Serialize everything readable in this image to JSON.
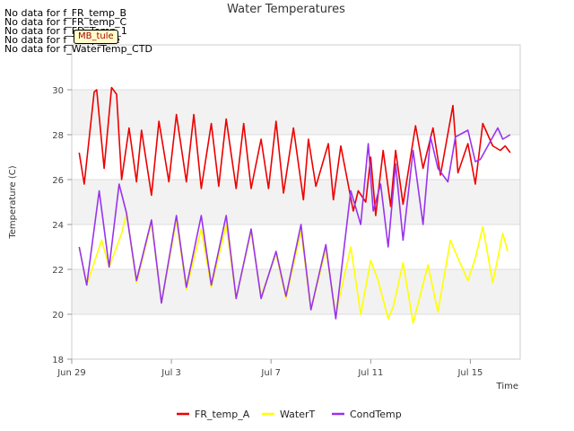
{
  "notes": [
    "No data for f_FR_temp_B",
    "No data for f_FR_temp_C",
    "No data for f_FD_Temp_1",
    "No data for f_Temp_Pile",
    "No data for f_WaterTemp_CTD"
  ],
  "badge": "MB_tule",
  "chart_data": {
    "type": "line",
    "title": "Water Temperatures",
    "xlabel": "Time",
    "ylabel": "Temperature (C)",
    "xlim": [
      0,
      18
    ],
    "ylim": [
      18,
      32
    ],
    "x_ticks": [
      {
        "value": 0,
        "label": "Jun 29"
      },
      {
        "value": 4,
        "label": "Jul 3"
      },
      {
        "value": 8,
        "label": "Jul 7"
      },
      {
        "value": 12,
        "label": "Jul 11"
      },
      {
        "value": 16,
        "label": "Jul 15"
      }
    ],
    "y_ticks": [
      18,
      20,
      22,
      24,
      26,
      28,
      30
    ],
    "grid": "horizontal bands",
    "legend_position": "bottom",
    "series": [
      {
        "name": "FR_temp_A",
        "color": "#ee0000",
        "x": [
          0.3,
          0.5,
          0.9,
          1.0,
          1.3,
          1.6,
          1.8,
          2.0,
          2.3,
          2.6,
          2.8,
          3.2,
          3.5,
          3.9,
          4.2,
          4.6,
          4.9,
          5.2,
          5.6,
          5.9,
          6.2,
          6.6,
          6.9,
          7.2,
          7.6,
          7.9,
          8.2,
          8.5,
          8.9,
          9.3,
          9.5,
          9.8,
          10.3,
          10.5,
          10.8,
          11.3,
          11.5,
          11.8,
          12.0,
          12.2,
          12.5,
          12.8,
          13.0,
          13.3,
          13.8,
          14.1,
          14.5,
          14.8,
          15.3,
          15.5,
          15.9,
          16.2,
          16.5,
          16.9,
          17.2,
          17.4,
          17.6
        ],
        "y": [
          27.2,
          25.8,
          29.9,
          30.0,
          26.5,
          30.1,
          29.8,
          26.0,
          28.3,
          25.9,
          28.2,
          25.3,
          28.6,
          25.9,
          28.9,
          25.9,
          28.9,
          25.6,
          28.5,
          25.7,
          28.7,
          25.6,
          28.5,
          25.6,
          27.8,
          25.6,
          28.6,
          25.4,
          28.3,
          25.1,
          27.8,
          25.7,
          27.6,
          25.1,
          27.5,
          24.6,
          25.5,
          25.0,
          27.0,
          24.4,
          27.3,
          24.8,
          27.3,
          24.9,
          28.4,
          26.5,
          28.3,
          26.2,
          29.3,
          26.3,
          27.6,
          25.8,
          28.5,
          27.5,
          27.3,
          27.5,
          27.2
        ]
      },
      {
        "name": "WaterT",
        "color": "#ffff00",
        "x": [
          0.3,
          0.6,
          1.2,
          1.5,
          2.0,
          2.2,
          2.6,
          3.2,
          3.6,
          4.2,
          4.6,
          5.2,
          5.6,
          6.2,
          6.6,
          7.2,
          7.6,
          8.2,
          8.6,
          9.2,
          9.6,
          10.2,
          10.6,
          11.2,
          11.6,
          12.0,
          12.3,
          12.7,
          12.9,
          13.3,
          13.7,
          14.3,
          14.7,
          15.2,
          15.5,
          15.9,
          16.2,
          16.5,
          16.9,
          17.3,
          17.5
        ],
        "y": [
          23.0,
          21.3,
          23.3,
          22.1,
          23.6,
          24.5,
          21.4,
          24.1,
          20.5,
          24.2,
          21.1,
          23.8,
          21.2,
          24.0,
          20.7,
          23.7,
          20.8,
          22.7,
          20.7,
          23.7,
          20.2,
          22.9,
          20.0,
          23.0,
          20.0,
          22.4,
          21.5,
          19.8,
          20.3,
          22.3,
          19.6,
          22.2,
          20.1,
          23.3,
          22.5,
          21.5,
          22.5,
          23.9,
          21.4,
          23.6,
          22.8
        ]
      },
      {
        "name": "CondTemp",
        "color": "#9933ee",
        "x": [
          0.3,
          0.6,
          1.1,
          1.5,
          1.9,
          2.2,
          2.6,
          3.2,
          3.6,
          4.2,
          4.6,
          5.2,
          5.6,
          6.2,
          6.6,
          7.2,
          7.6,
          8.2,
          8.6,
          9.2,
          9.6,
          10.2,
          10.6,
          11.2,
          11.6,
          11.9,
          12.1,
          12.4,
          12.7,
          13.0,
          13.3,
          13.7,
          14.1,
          14.4,
          14.7,
          15.1,
          15.4,
          15.9,
          16.2,
          16.4,
          16.8,
          17.1,
          17.3,
          17.6
        ],
        "y": [
          23.0,
          21.3,
          25.5,
          22.1,
          25.8,
          24.5,
          21.5,
          24.2,
          20.5,
          24.4,
          21.2,
          24.4,
          21.3,
          24.4,
          20.7,
          23.8,
          20.7,
          22.8,
          20.8,
          24.0,
          20.2,
          23.1,
          19.8,
          25.5,
          24.0,
          27.6,
          24.6,
          25.8,
          23.0,
          26.7,
          23.3,
          27.3,
          24.0,
          27.9,
          26.5,
          25.9,
          27.9,
          28.2,
          26.8,
          26.9,
          27.7,
          28.3,
          27.8,
          28.0
        ]
      }
    ]
  }
}
